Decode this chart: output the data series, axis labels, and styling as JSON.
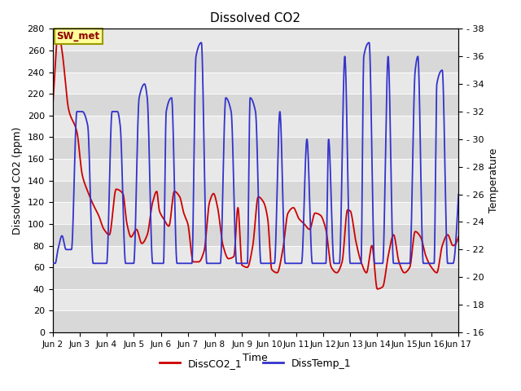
{
  "title": "Dissolved CO2",
  "xlabel": "Time",
  "ylabel_left": "Dissolved CO2 (ppm)",
  "ylabel_right": "Temperature",
  "legend_labels": [
    "DissCO2_1",
    "DissTemp_1"
  ],
  "co2_color": "#cc0000",
  "temp_color": "#3333cc",
  "plot_bg_color": "#e8e8e8",
  "band_colors": [
    "#d8d8d8",
    "#e8e8e8"
  ],
  "annotation_text": "SW_met",
  "ylim_left": [
    0,
    280
  ],
  "ylim_right": [
    16,
    38
  ],
  "xlim": [
    1,
    16
  ],
  "xtick_labels": [
    "Jun 2",
    "Jun 3",
    "Jun 4",
    "Jun 5",
    "Jun 6",
    "Jun 7",
    "Jun 8",
    "Jun 9",
    "Jun 10",
    "Jun 11",
    "Jun 12",
    "Jun 13",
    "Jun 14",
    "Jun 15",
    "Jun 16",
    "Jun 17"
  ],
  "xtick_pos": [
    1,
    2,
    3,
    4,
    5,
    6,
    7,
    8,
    9,
    10,
    11,
    12,
    13,
    14,
    15,
    16
  ],
  "yticks_left": [
    0,
    20,
    40,
    60,
    80,
    100,
    120,
    140,
    160,
    180,
    200,
    220,
    240,
    260,
    280
  ],
  "yticks_right": [
    16,
    18,
    20,
    22,
    24,
    26,
    28,
    30,
    32,
    34,
    36,
    38
  ]
}
